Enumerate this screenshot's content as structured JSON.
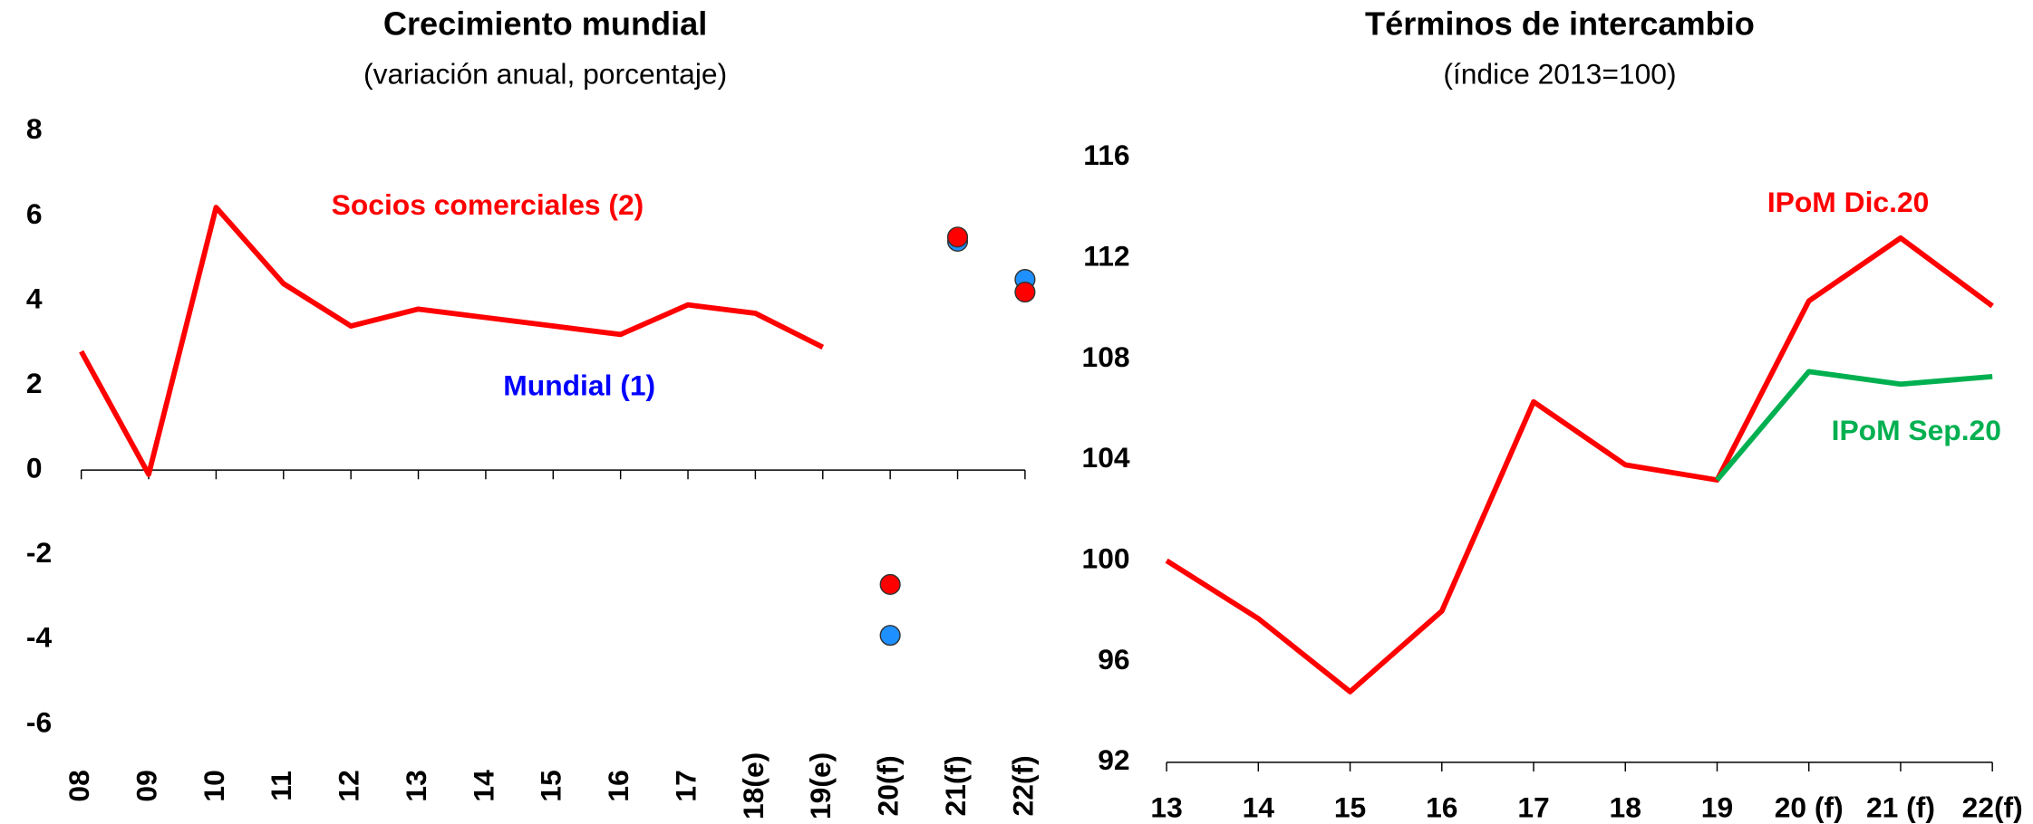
{
  "chart_data": [
    {
      "type": "line",
      "title": "Crecimiento mundial",
      "subtitle": "(variación anual, porcentaje)",
      "categories": [
        "08",
        "09",
        "10",
        "11",
        "12",
        "13",
        "14",
        "15",
        "16",
        "17",
        "18(e)",
        "19(e)",
        "20(f)",
        "21(f)",
        "22(f)"
      ],
      "ylim": [
        -6,
        8
      ],
      "yticks": [
        -6,
        -4,
        -2,
        0,
        2,
        4,
        6,
        8
      ],
      "series": [
        {
          "name": "Socios comerciales (2)",
          "color": "#ff0000",
          "values": [
            2.8,
            -0.1,
            6.2,
            4.4,
            3.4,
            3.8,
            3.6,
            3.4,
            3.2,
            3.9,
            3.7,
            2.9,
            null,
            null,
            null
          ],
          "forecast": [
            null,
            null,
            null,
            null,
            null,
            null,
            null,
            null,
            null,
            null,
            null,
            null,
            -2.7,
            5.5,
            4.2
          ]
        },
        {
          "name": "Mundial (1)",
          "color": "#0000ff",
          "marker_color": "#1e90ff",
          "values": [
            null,
            null,
            null,
            null,
            null,
            null,
            null,
            null,
            null,
            null,
            null,
            null,
            null,
            null,
            null
          ],
          "forecast": [
            null,
            null,
            null,
            null,
            null,
            null,
            null,
            null,
            null,
            null,
            null,
            null,
            -3.9,
            5.4,
            4.5
          ]
        }
      ]
    },
    {
      "type": "line",
      "title": "Términos de intercambio",
      "subtitle": "(índice 2013=100)",
      "categories": [
        "13",
        "14",
        "15",
        "16",
        "17",
        "18",
        "19",
        "20 (f)",
        "21 (f)",
        "22(f)"
      ],
      "ylim": [
        92,
        116
      ],
      "yticks": [
        92,
        96,
        100,
        104,
        108,
        112,
        116
      ],
      "series": [
        {
          "name": "IPoM Dic.20",
          "color": "#ff0000",
          "values": [
            100,
            97.7,
            94.8,
            98.0,
            106.3,
            103.8,
            103.2,
            110.3,
            112.8,
            110.1
          ]
        },
        {
          "name": "IPoM Sep.20",
          "color": "#00b050",
          "values": [
            null,
            null,
            null,
            null,
            null,
            null,
            103.2,
            107.5,
            107.0,
            107.3
          ]
        }
      ]
    }
  ]
}
